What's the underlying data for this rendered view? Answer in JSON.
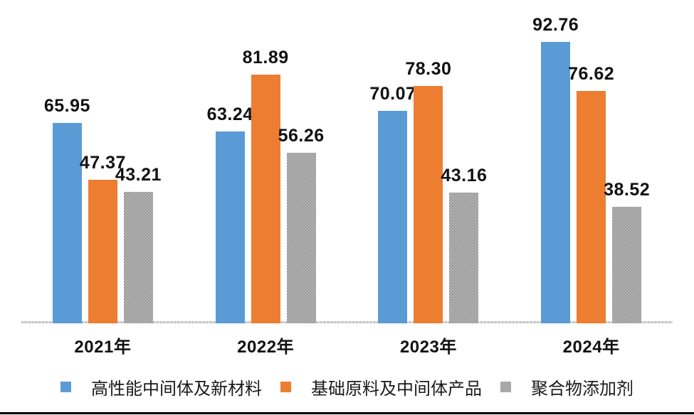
{
  "chart_data": {
    "type": "bar",
    "title": "",
    "xlabel": "",
    "ylabel": "",
    "categories": [
      "2021年",
      "2022年",
      "2023年",
      "2024年"
    ],
    "series": [
      {
        "name": "高性能中间体及新材料",
        "color": "#5B9BD5",
        "pattern": "none",
        "values": [
          65.95,
          63.24,
          70.07,
          92.76
        ],
        "labels": [
          "65.95",
          "63.24",
          "70.07",
          "92.76"
        ]
      },
      {
        "name": "基础原料及中间体产品",
        "color": "#ED7D31",
        "pattern": "none",
        "values": [
          47.37,
          81.89,
          78.3,
          76.62
        ],
        "labels": [
          "47.37",
          "81.89",
          "78.30",
          "76.62"
        ]
      },
      {
        "name": "聚合物添加剂",
        "color": "#B4B4B4",
        "pattern": "dot-grid",
        "pattern_dot_color": "#9B9B9B",
        "values": [
          43.21,
          56.26,
          43.16,
          38.52
        ],
        "labels": [
          "43.21",
          "56.26",
          "43.16",
          "38.52"
        ]
      }
    ],
    "value_labels_shown": true,
    "grid": false,
    "y_axis_shown": false,
    "ylim": [
      0,
      100
    ],
    "legend_position": "bottom",
    "colors": {
      "background": "#FFFFFF",
      "axis_line": "#D9D9D9",
      "label_text": "#111111",
      "bottom_rule": "#000000"
    }
  }
}
